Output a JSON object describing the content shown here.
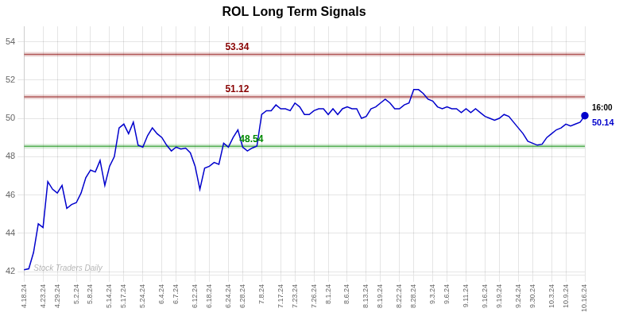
{
  "chart_data": {
    "type": "line",
    "title": "ROL Long Term Signals",
    "categories": [
      "4.18.24",
      null,
      null,
      null,
      "4.23.24",
      null,
      null,
      "4.29.24",
      null,
      null,
      null,
      "5.2.24",
      null,
      null,
      "5.8.24",
      null,
      null,
      null,
      "5.14.24",
      null,
      null,
      "5.17.24",
      null,
      null,
      null,
      "5.24.24",
      null,
      null,
      null,
      "6.4.24",
      null,
      null,
      "6.7.24",
      null,
      null,
      null,
      "6.12.24",
      null,
      null,
      "6.18.24",
      null,
      null,
      null,
      "6.24.24",
      null,
      null,
      "6.28.24",
      null,
      null,
      null,
      "7.8.24",
      null,
      null,
      null,
      "7.17.24",
      null,
      null,
      "7.23.24",
      null,
      null,
      null,
      "7.26.24",
      null,
      null,
      "8.1.24",
      null,
      null,
      null,
      "8.6.24",
      null,
      null,
      null,
      "8.13.24",
      null,
      null,
      "8.19.24",
      null,
      null,
      null,
      "8.22.24",
      null,
      null,
      "8.28.24",
      null,
      null,
      null,
      "9.3.24",
      null,
      null,
      "9.6.24",
      null,
      null,
      null,
      "9.11.24",
      null,
      null,
      null,
      "9.16.24",
      null,
      null,
      "9.19.24",
      null,
      null,
      null,
      "9.24.24",
      null,
      null,
      "9.30.24",
      null,
      null,
      null,
      "10.3.24",
      null,
      null,
      "10.9.24",
      null,
      null,
      null,
      "10.16.24"
    ],
    "values": [
      42.1,
      42.15,
      43.0,
      44.5,
      44.3,
      46.7,
      46.3,
      46.1,
      46.5,
      45.3,
      45.5,
      45.6,
      46.1,
      46.9,
      47.3,
      47.2,
      47.8,
      46.5,
      47.5,
      48.0,
      49.5,
      49.7,
      49.2,
      49.8,
      48.6,
      48.5,
      49.1,
      49.5,
      49.2,
      49.0,
      48.6,
      48.3,
      48.5,
      48.4,
      48.45,
      48.2,
      47.5,
      46.3,
      47.4,
      47.5,
      47.7,
      47.6,
      48.7,
      48.5,
      49.0,
      49.4,
      48.5,
      48.3,
      48.45,
      48.55,
      50.2,
      50.4,
      50.4,
      50.7,
      50.5,
      50.5,
      50.4,
      50.8,
      50.6,
      50.2,
      50.2,
      50.4,
      50.5,
      50.5,
      50.2,
      50.5,
      50.2,
      50.5,
      50.6,
      50.5,
      50.5,
      50.0,
      50.1,
      50.5,
      50.6,
      50.8,
      51.0,
      50.8,
      50.5,
      50.5,
      50.7,
      50.8,
      51.5,
      51.5,
      51.3,
      51.0,
      50.9,
      50.6,
      50.5,
      50.6,
      50.5,
      50.5,
      50.3,
      50.5,
      50.3,
      50.5,
      50.3,
      50.1,
      50.0,
      49.9,
      50.0,
      50.2,
      50.1,
      49.8,
      49.5,
      49.2,
      48.8,
      48.7,
      48.6,
      48.65,
      49.0,
      49.2,
      49.4,
      49.5,
      49.7,
      49.6,
      49.7,
      49.8,
      50.14
    ],
    "color": "#0000cc",
    "hlines": [
      {
        "value": 53.34,
        "label": "53.34",
        "color": "#880000"
      },
      {
        "value": 51.12,
        "label": "51.12",
        "color": "#880000"
      },
      {
        "value": 48.54,
        "label": "48.54",
        "color": "#008800"
      }
    ],
    "last_point_labels": [
      "16:00",
      "50.14"
    ],
    "watermark": "Stock Traders Daily",
    "ylim": [
      41.8,
      54.8
    ],
    "yticks": [
      42,
      44,
      46,
      48,
      50,
      52,
      54
    ],
    "grid": true
  }
}
